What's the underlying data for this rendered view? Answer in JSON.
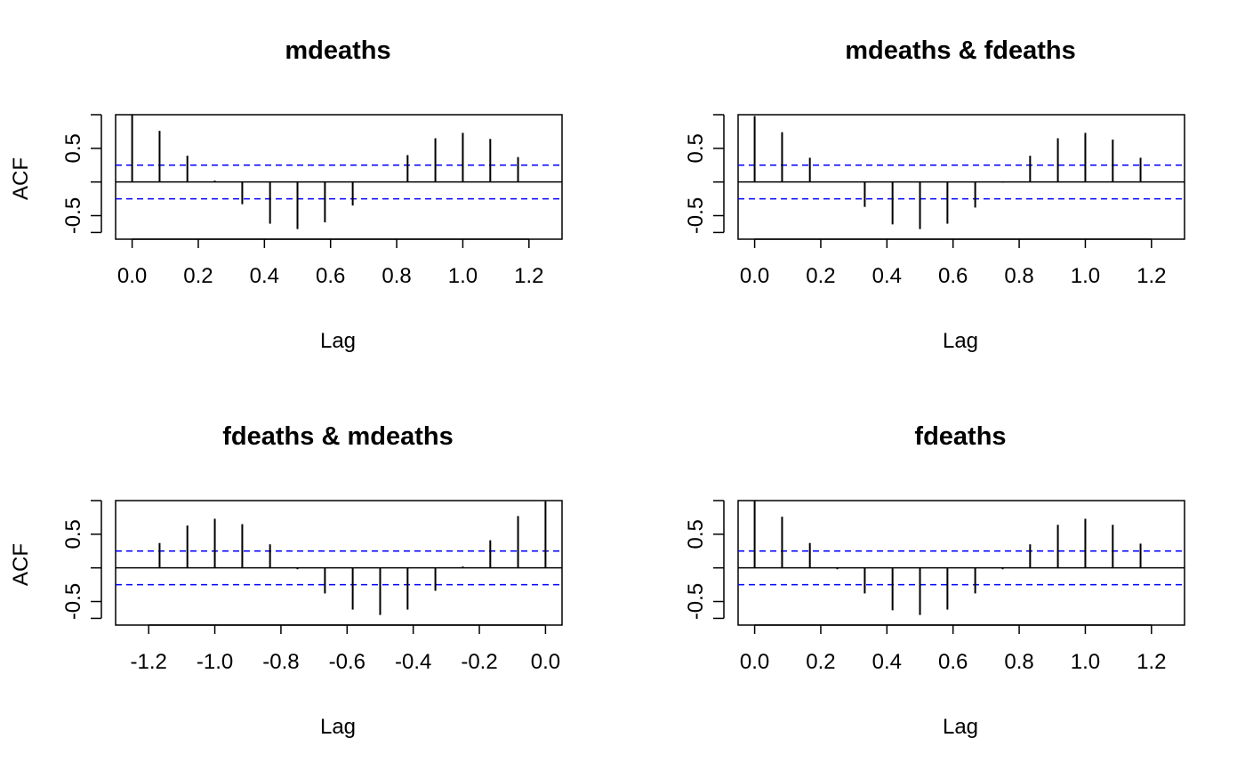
{
  "chart_data": [
    {
      "type": "bar",
      "title": "mdeaths",
      "xlabel": "Lag",
      "ylabel": "ACF",
      "xlim": [
        -0.05,
        1.3
      ],
      "ylim": [
        -0.85,
        1.0
      ],
      "xticks": [
        0.0,
        0.2,
        0.4,
        0.6,
        0.8,
        1.0,
        1.2
      ],
      "xtick_labels": [
        "0.0",
        "0.2",
        "0.4",
        "0.6",
        "0.8",
        "1.0",
        "1.2"
      ],
      "yticks": [
        -0.5,
        0.5
      ],
      "ytick_labels": [
        "-0.5",
        "0.5"
      ],
      "ci": 0.25,
      "x": [
        0.0,
        0.083,
        0.167,
        0.25,
        0.333,
        0.417,
        0.5,
        0.583,
        0.667,
        0.75,
        0.833,
        0.917,
        1.0,
        1.083,
        1.167
      ],
      "values": [
        1.0,
        0.76,
        0.39,
        0.02,
        -0.33,
        -0.62,
        -0.7,
        -0.6,
        -0.35,
        0.0,
        0.4,
        0.65,
        0.73,
        0.64,
        0.37
      ]
    },
    {
      "type": "bar",
      "title": "mdeaths & fdeaths",
      "xlabel": "Lag",
      "ylabel": "",
      "xlim": [
        -0.05,
        1.3
      ],
      "ylim": [
        -0.85,
        1.0
      ],
      "xticks": [
        0.0,
        0.2,
        0.4,
        0.6,
        0.8,
        1.0,
        1.2
      ],
      "xtick_labels": [
        "0.0",
        "0.2",
        "0.4",
        "0.6",
        "0.8",
        "1.0",
        "1.2"
      ],
      "yticks": [
        -0.5,
        0.5
      ],
      "ytick_labels": [
        "-0.5",
        "0.5"
      ],
      "ci": 0.25,
      "x": [
        0.0,
        0.083,
        0.167,
        0.25,
        0.333,
        0.417,
        0.5,
        0.583,
        0.667,
        0.75,
        0.833,
        0.917,
        1.0,
        1.083,
        1.167
      ],
      "values": [
        0.98,
        0.74,
        0.36,
        0.0,
        -0.37,
        -0.63,
        -0.7,
        -0.62,
        -0.38,
        -0.01,
        0.39,
        0.65,
        0.73,
        0.63,
        0.36
      ]
    },
    {
      "type": "bar",
      "title": "fdeaths & mdeaths",
      "xlabel": "Lag",
      "ylabel": "ACF",
      "xlim": [
        -1.3,
        0.05
      ],
      "ylim": [
        -0.85,
        1.0
      ],
      "xticks": [
        -1.2,
        -1.0,
        -0.8,
        -0.6,
        -0.4,
        -0.2,
        0.0
      ],
      "xtick_labels": [
        "-1.2",
        "-1.0",
        "-0.8",
        "-0.6",
        "-0.4",
        "-0.2",
        "0.0"
      ],
      "yticks": [
        -0.5,
        0.5
      ],
      "ytick_labels": [
        "-0.5",
        "0.5"
      ],
      "ci": 0.25,
      "x": [
        -1.167,
        -1.083,
        -1.0,
        -0.917,
        -0.833,
        -0.75,
        -0.667,
        -0.583,
        -0.5,
        -0.417,
        -0.333,
        -0.25,
        -0.167,
        -0.083,
        0.0
      ],
      "values": [
        0.37,
        0.63,
        0.73,
        0.65,
        0.35,
        -0.02,
        -0.38,
        -0.62,
        -0.7,
        -0.62,
        -0.34,
        0.02,
        0.41,
        0.77,
        0.99
      ]
    },
    {
      "type": "bar",
      "title": "fdeaths",
      "xlabel": "Lag",
      "ylabel": "",
      "xlim": [
        -0.05,
        1.3
      ],
      "ylim": [
        -0.85,
        1.0
      ],
      "xticks": [
        0.0,
        0.2,
        0.4,
        0.6,
        0.8,
        1.0,
        1.2
      ],
      "xtick_labels": [
        "0.0",
        "0.2",
        "0.4",
        "0.6",
        "0.8",
        "1.0",
        "1.2"
      ],
      "yticks": [
        -0.5,
        0.5
      ],
      "ytick_labels": [
        "-0.5",
        "0.5"
      ],
      "ci": 0.25,
      "x": [
        0.0,
        0.083,
        0.167,
        0.25,
        0.333,
        0.417,
        0.5,
        0.583,
        0.667,
        0.75,
        0.833,
        0.917,
        1.0,
        1.083,
        1.167
      ],
      "values": [
        1.0,
        0.76,
        0.37,
        -0.02,
        -0.38,
        -0.63,
        -0.7,
        -0.62,
        -0.38,
        -0.02,
        0.35,
        0.64,
        0.73,
        0.64,
        0.36
      ]
    }
  ],
  "style": {
    "ci_color": "#0000ff",
    "bar_color": "#000000",
    "axis_color": "#000000"
  }
}
